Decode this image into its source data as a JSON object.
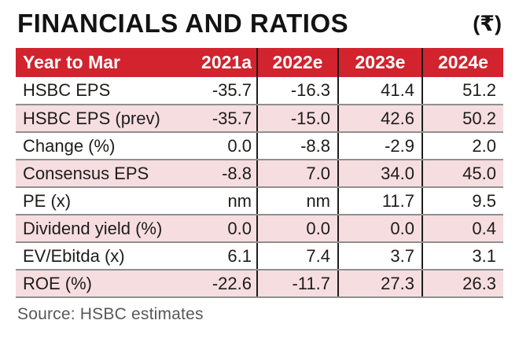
{
  "title": "FINANCIALS AND RATIOS",
  "currency_note": "(₹)",
  "source_note": "Source: HSBC estimates",
  "colors": {
    "header_bg": "#d2232e",
    "alt_row_bg": "#f6dde0",
    "row_line": "#8f8f8f",
    "column_line": "#1d1d1b",
    "header_text": "#ffffff",
    "body_text": "#1d1d1b",
    "source_text": "#58585a"
  },
  "chart_data": {
    "type": "table",
    "title": "FINANCIALS AND RATIOS",
    "unit": "₹",
    "columns": [
      "Year to Mar",
      "2021a",
      "2022e",
      "2023e",
      "2024e"
    ],
    "rows": [
      {
        "label": "HSBC EPS",
        "values": [
          "-35.7",
          "-16.3",
          "41.4",
          "51.2"
        ]
      },
      {
        "label": "HSBC EPS (prev)",
        "values": [
          "-35.7",
          "-15.0",
          "42.6",
          "50.2"
        ]
      },
      {
        "label": "Change (%)",
        "values": [
          "0.0",
          "-8.8",
          "-2.9",
          "2.0"
        ]
      },
      {
        "label": "Consensus EPS",
        "values": [
          "-8.8",
          "7.0",
          "34.0",
          "45.0"
        ]
      },
      {
        "label": "PE (x)",
        "values": [
          "nm",
          "nm",
          "11.7",
          "9.5"
        ]
      },
      {
        "label": "Dividend yield (%)",
        "values": [
          "0.0",
          "0.0",
          "0.0",
          "0.4"
        ]
      },
      {
        "label": "EV/Ebitda (x)",
        "values": [
          "6.1",
          "7.4",
          "3.7",
          "3.1"
        ]
      },
      {
        "label": "ROE (%)",
        "values": [
          "-22.6",
          "-11.7",
          "27.3",
          "26.3"
        ]
      }
    ],
    "source": "Source: HSBC estimates",
    "layout": {
      "alternating_row_shading": "even rows pink",
      "column_dividers": "black vertical lines between year columns",
      "row_separators": "gray horizontal lines"
    }
  }
}
